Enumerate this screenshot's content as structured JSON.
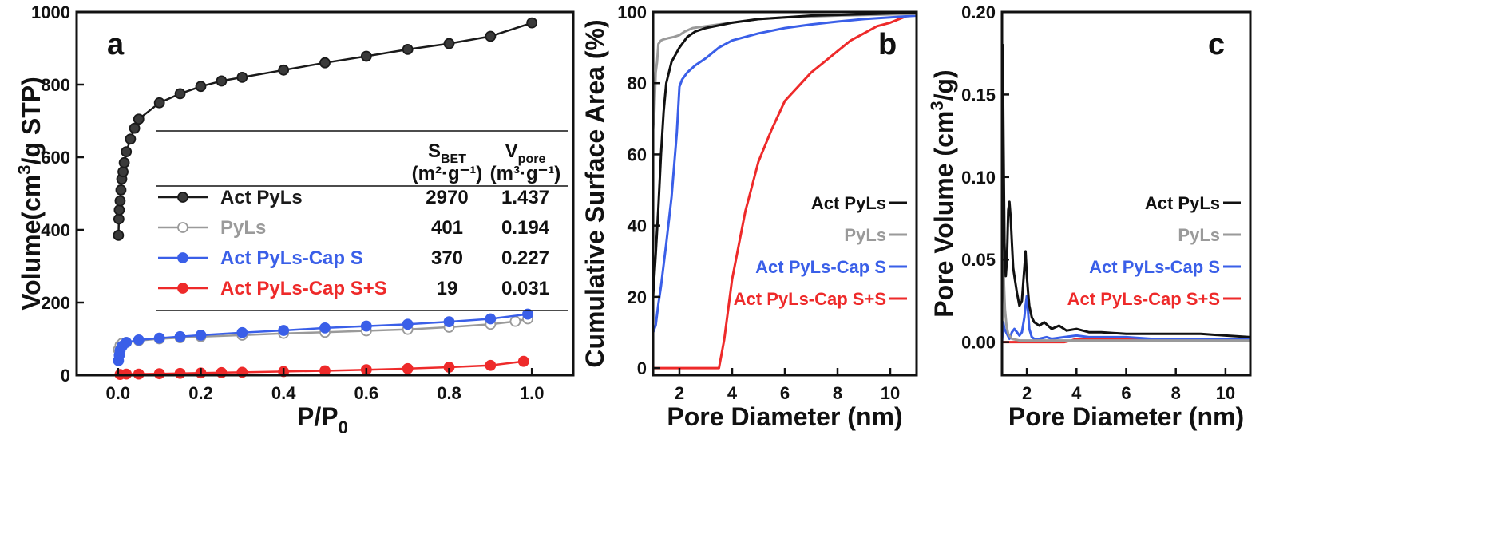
{
  "chart_data": [
    {
      "panel": "a",
      "type": "scatter",
      "xlabel_main": "P/P",
      "xlabel_sub": "0",
      "ylabel_pre": "Volume(cm",
      "ylabel_sup": "3",
      "ylabel_post": "/g STP)",
      "xlim": [
        -0.1,
        1.1
      ],
      "ylim": [
        0,
        1000
      ],
      "xticks": [
        0.0,
        0.2,
        0.4,
        0.6,
        0.8,
        1.0
      ],
      "yticks": [
        0,
        200,
        400,
        600,
        800,
        1000
      ],
      "xtick_labels": [
        "0.0",
        "0.2",
        "0.4",
        "0.6",
        "0.8",
        "1.0"
      ],
      "ytick_labels": [
        "0",
        "200",
        "400",
        "600",
        "800",
        "1000"
      ],
      "table": {
        "header1_main": "S",
        "header1_sub": "BET",
        "header1_unit": "(m²·g⁻¹)",
        "header2_main": "V",
        "header2_sub": "pore",
        "header2_unit": "(m³·g⁻¹)",
        "rows": [
          {
            "name": "Act PyLs",
            "sbet": "2970",
            "vpore": "1.437",
            "color": "#1a1a1a"
          },
          {
            "name": "PyLs",
            "sbet": "401",
            "vpore": "0.194",
            "color": "#9a9a9a"
          },
          {
            "name": "Act PyLs-Cap S",
            "sbet": "370",
            "vpore": "0.227",
            "color": "#3a5fe8"
          },
          {
            "name": "Act PyLs-Cap S+S",
            "sbet": "19",
            "vpore": "0.031",
            "color": "#ee2a2a"
          }
        ]
      },
      "series": [
        {
          "name": "Act PyLs",
          "color": "#1a1a1a",
          "fill": "#3a3a3a",
          "x": [
            0.001,
            0.002,
            0.003,
            0.005,
            0.007,
            0.009,
            0.012,
            0.015,
            0.02,
            0.03,
            0.04,
            0.05,
            0.1,
            0.15,
            0.2,
            0.25,
            0.3,
            0.4,
            0.5,
            0.6,
            0.7,
            0.8,
            0.9,
            1.0
          ],
          "y": [
            385,
            430,
            455,
            480,
            510,
            540,
            560,
            585,
            615,
            650,
            680,
            705,
            750,
            775,
            795,
            810,
            820,
            840,
            860,
            878,
            897,
            913,
            933,
            970
          ]
        },
        {
          "name": "PyLs",
          "color": "#9a9a9a",
          "fill": "#ffffff",
          "x": [
            0.001,
            0.005,
            0.01,
            0.02,
            0.05,
            0.1,
            0.15,
            0.2,
            0.3,
            0.4,
            0.5,
            0.6,
            0.7,
            0.8,
            0.9,
            0.96,
            0.99
          ],
          "y": [
            70,
            82,
            88,
            90,
            95,
            100,
            103,
            106,
            110,
            115,
            118,
            122,
            126,
            132,
            140,
            148,
            155
          ]
        },
        {
          "name": "Act PyLs-Cap S",
          "color": "#3a5fe8",
          "fill": "#3a5fe8",
          "x": [
            0.001,
            0.003,
            0.005,
            0.01,
            0.02,
            0.05,
            0.1,
            0.15,
            0.2,
            0.3,
            0.4,
            0.5,
            0.6,
            0.7,
            0.8,
            0.9,
            0.99
          ],
          "y": [
            40,
            55,
            68,
            80,
            90,
            97,
            102,
            106,
            110,
            117,
            123,
            130,
            135,
            140,
            147,
            155,
            168
          ]
        },
        {
          "name": "Act PyLs-Cap S+S",
          "color": "#ee2a2a",
          "fill": "#ee2a2a",
          "x": [
            0.005,
            0.02,
            0.05,
            0.1,
            0.15,
            0.2,
            0.25,
            0.3,
            0.4,
            0.5,
            0.6,
            0.7,
            0.8,
            0.9,
            0.98
          ],
          "y": [
            2,
            3,
            3,
            4,
            5,
            6,
            7,
            8,
            10,
            12,
            15,
            18,
            22,
            27,
            38
          ]
        }
      ]
    },
    {
      "panel": "b",
      "type": "line",
      "xlabel": "Pore Diameter (nm)",
      "ylabel": "Cumulative Surface Area (%)",
      "xlim": [
        1,
        11
      ],
      "ylim": [
        -2,
        100
      ],
      "xticks": [
        2,
        4,
        6,
        8,
        10
      ],
      "yticks": [
        0,
        20,
        40,
        60,
        80,
        100
      ],
      "xtick_labels": [
        "2",
        "4",
        "6",
        "8",
        "10"
      ],
      "ytick_labels": [
        "0",
        "20",
        "40",
        "60",
        "80",
        "100"
      ],
      "series": [
        {
          "name": "Act PyLs",
          "color": "#111111",
          "x": [
            1.0,
            1.1,
            1.2,
            1.3,
            1.4,
            1.5,
            1.7,
            2.0,
            2.3,
            2.6,
            3.0,
            4.0,
            5.0,
            6.0,
            7.0,
            8.0,
            9.0,
            10.0,
            11.0
          ],
          "y": [
            20,
            32,
            45,
            60,
            72,
            80,
            86,
            90,
            93,
            94.5,
            95.5,
            97,
            98,
            98.5,
            99,
            99.2,
            99.4,
            99.6,
            99.8
          ]
        },
        {
          "name": "PyLs",
          "color": "#9a9a9a",
          "x": [
            1.0,
            1.05,
            1.1,
            1.15,
            1.2,
            1.3,
            1.4,
            1.6,
            1.8,
            2.0,
            2.2,
            2.5,
            3.0,
            4.0,
            5.0,
            6.0,
            8.0,
            10.0,
            11.0
          ],
          "y": [
            67,
            72,
            83,
            86,
            91,
            92,
            92.3,
            92.7,
            93,
            93.5,
            94.5,
            95.5,
            96,
            97,
            98,
            98.5,
            99,
            99.3,
            99.5
          ]
        },
        {
          "name": "Act PyLs-Cap S",
          "color": "#3a5fe8",
          "x": [
            1.0,
            1.1,
            1.2,
            1.3,
            1.5,
            1.7,
            1.9,
            2.0,
            2.1,
            2.3,
            2.6,
            3.0,
            3.5,
            4.0,
            5.0,
            6.0,
            7.0,
            8.0,
            9.0,
            10.0,
            11.0
          ],
          "y": [
            10,
            12,
            18,
            23,
            35,
            48,
            66,
            79,
            81,
            83,
            85,
            87,
            90,
            92,
            94,
            95.5,
            96.5,
            97.3,
            98,
            98.5,
            99
          ]
        },
        {
          "name": "Act PyLs-Cap S+S",
          "color": "#ee2a2a",
          "x": [
            1.0,
            2.0,
            3.0,
            3.5,
            3.7,
            4.0,
            4.5,
            5.0,
            5.5,
            6.0,
            6.5,
            7.0,
            7.5,
            8.0,
            8.5,
            9.0,
            9.5,
            10.0,
            10.5,
            11.0
          ],
          "y": [
            0,
            0,
            0,
            0,
            8,
            25,
            44,
            58,
            67,
            75,
            79,
            83,
            86,
            89,
            92,
            94,
            96,
            97,
            98.5,
            100
          ]
        }
      ],
      "legend": [
        "Act PyLs",
        "PyLs",
        "Act PyLs-Cap S",
        "Act PyLs-Cap S+S"
      ]
    },
    {
      "panel": "c",
      "type": "line",
      "xlabel": "Pore Diameter (nm)",
      "ylabel_pre": "Pore Volume (cm",
      "ylabel_sup": "3",
      "ylabel_post": "/g)",
      "xlim": [
        1,
        11
      ],
      "ylim": [
        -0.02,
        0.2
      ],
      "xticks": [
        2,
        4,
        6,
        8,
        10
      ],
      "yticks": [
        0.0,
        0.05,
        0.1,
        0.15,
        0.2
      ],
      "xtick_labels": [
        "2",
        "4",
        "6",
        "8",
        "10"
      ],
      "ytick_labels": [
        "0.00",
        "0.05",
        "0.10",
        "0.15",
        "0.20"
      ],
      "series": [
        {
          "name": "Act PyLs",
          "color": "#111111",
          "x": [
            1.0,
            1.03,
            1.06,
            1.1,
            1.15,
            1.2,
            1.25,
            1.3,
            1.35,
            1.4,
            1.45,
            1.5,
            1.55,
            1.6,
            1.7,
            1.8,
            1.9,
            1.95,
            2.0,
            2.05,
            2.1,
            2.2,
            2.3,
            2.5,
            2.7,
            3.0,
            3.3,
            3.6,
            4.0,
            4.5,
            5.0,
            6.0,
            7.0,
            8.0,
            9.0,
            10.0,
            11.0
          ],
          "y": [
            0.0,
            0.18,
            0.12,
            0.06,
            0.04,
            0.05,
            0.08,
            0.085,
            0.075,
            0.06,
            0.045,
            0.04,
            0.035,
            0.03,
            0.022,
            0.025,
            0.045,
            0.055,
            0.04,
            0.03,
            0.022,
            0.015,
            0.012,
            0.01,
            0.012,
            0.008,
            0.01,
            0.007,
            0.008,
            0.006,
            0.006,
            0.005,
            0.005,
            0.005,
            0.005,
            0.004,
            0.003
          ]
        },
        {
          "name": "PyLs",
          "color": "#9a9a9a",
          "x": [
            1.0,
            1.02,
            1.05,
            1.08,
            1.12,
            1.18,
            1.25,
            1.4,
            1.7,
            2.0,
            3.0,
            5.0,
            8.0,
            11.0
          ],
          "y": [
            0.0,
            0.09,
            0.06,
            0.035,
            0.02,
            0.01,
            0.005,
            0.002,
            0.001,
            0.001,
            0.001,
            0.001,
            0.001,
            0.001
          ]
        },
        {
          "name": "Act PyLs-Cap S",
          "color": "#3a5fe8",
          "x": [
            1.0,
            1.05,
            1.1,
            1.2,
            1.3,
            1.4,
            1.5,
            1.6,
            1.7,
            1.8,
            1.9,
            1.95,
            2.0,
            2.05,
            2.1,
            2.2,
            2.3,
            2.5,
            2.8,
            3.0,
            3.5,
            4.0,
            4.5,
            5.0,
            6.0,
            7.0,
            8.0,
            9.0,
            10.0,
            11.0
          ],
          "y": [
            0.0,
            0.012,
            0.008,
            0.005,
            0.002,
            0.006,
            0.008,
            0.006,
            0.004,
            0.006,
            0.015,
            0.022,
            0.028,
            0.018,
            0.008,
            0.003,
            0.002,
            0.002,
            0.003,
            0.002,
            0.003,
            0.004,
            0.003,
            0.003,
            0.003,
            0.002,
            0.002,
            0.002,
            0.002,
            0.002
          ]
        },
        {
          "name": "Act PyLs-Cap S+S",
          "color": "#ee2a2a",
          "x": [
            1.0,
            2.0,
            3.0,
            3.5,
            3.8,
            4.0,
            5.0,
            6.0,
            7.0,
            8.0,
            9.0,
            10.0,
            11.0
          ],
          "y": [
            0.0,
            0.0,
            0.0,
            0.0,
            0.001,
            0.002,
            0.002,
            0.002,
            0.002,
            0.002,
            0.002,
            0.002,
            0.002
          ]
        }
      ],
      "legend": [
        "Act PyLs",
        "PyLs",
        "Act PyLs-Cap S",
        "Act PyLs-Cap S+S"
      ]
    }
  ],
  "panel_labels": [
    "a",
    "b",
    "c"
  ]
}
